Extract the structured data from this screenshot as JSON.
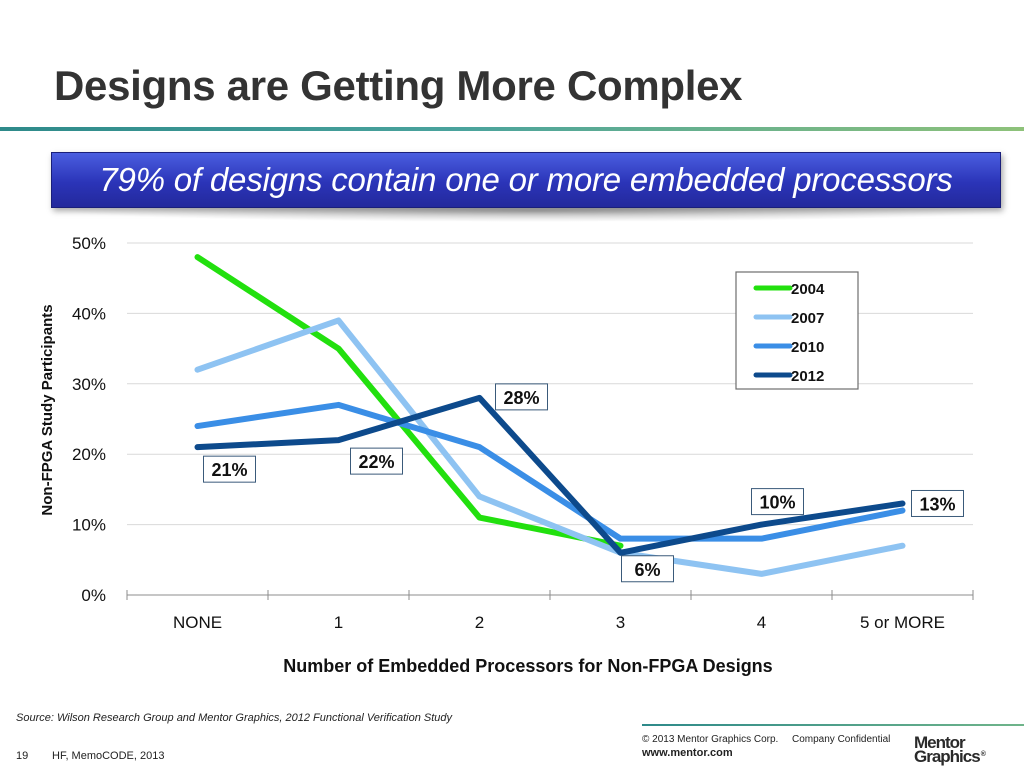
{
  "slide": {
    "title": "Designs are Getting More Complex",
    "banner": "79% of designs contain one or more embedded processors",
    "colors": {
      "title_text": "#333333",
      "banner_bg": "#2b34b8",
      "rule": "#4aa39d"
    }
  },
  "chart_data": {
    "type": "line",
    "categories": [
      "NONE",
      "1",
      "2",
      "3",
      "4",
      "5 or MORE"
    ],
    "series": [
      {
        "name": "2004",
        "color": "#22e00e",
        "values": [
          48,
          35,
          11,
          7,
          null,
          null
        ]
      },
      {
        "name": "2007",
        "color": "#8ec3f2",
        "values": [
          32,
          39,
          14,
          6,
          3,
          7
        ]
      },
      {
        "name": "2010",
        "color": "#3a8ee6",
        "values": [
          24,
          27,
          21,
          8,
          8,
          12
        ]
      },
      {
        "name": "2012",
        "color": "#0d4a8c",
        "values": [
          21,
          22,
          28,
          6,
          10,
          13
        ]
      }
    ],
    "data_labels": [
      {
        "series": "2012",
        "category": "NONE",
        "text": "21%"
      },
      {
        "series": "2012",
        "category": "1",
        "text": "22%"
      },
      {
        "series": "2012",
        "category": "2",
        "text": "28%"
      },
      {
        "series": "2012",
        "category": "3",
        "text": "6%"
      },
      {
        "series": "2012",
        "category": "4",
        "text": "10%"
      },
      {
        "series": "2012",
        "category": "5 or MORE",
        "text": "13%"
      }
    ],
    "ylim": [
      0,
      50
    ],
    "yticks": [
      "0%",
      "10%",
      "20%",
      "30%",
      "40%",
      "50%"
    ],
    "ytick_values": [
      0,
      10,
      20,
      30,
      40,
      50
    ],
    "xlabel": "Number of Embedded Processors for Non-FPGA Designs",
    "ylabel": "Non-FPGA Study Participants",
    "grid": true,
    "legend_position": "top-right"
  },
  "footer": {
    "source": "Source: Wilson Research Group and Mentor Graphics, 2012 Functional Verification Study",
    "page_number": "19",
    "event": "HF, MemoCODE, 2013",
    "copyright": "© 2013 Mentor Graphics Corp.",
    "confidential": "Company Confidential",
    "website": "www.mentor.com",
    "logo_line1": "Mentor",
    "logo_line2": "Graphics"
  }
}
